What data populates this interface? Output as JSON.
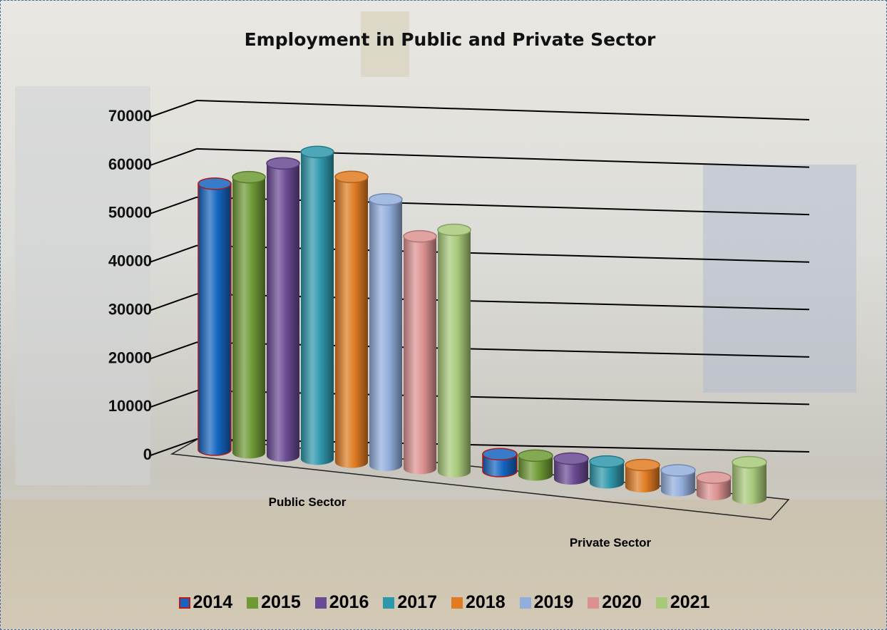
{
  "chart_data": {
    "type": "bar",
    "title": "Employment in Public and Private Sector",
    "categories": [
      "Public Sector",
      "Private Sector"
    ],
    "series": [
      {
        "name": "2014",
        "values": [
          55000,
          3500
        ],
        "color": "#1464c0"
      },
      {
        "name": "2015",
        "values": [
          57000,
          4000
        ],
        "color": "#6e9a35"
      },
      {
        "name": "2016",
        "values": [
          60500,
          4200
        ],
        "color": "#6a4a93"
      },
      {
        "name": "2017",
        "values": [
          63500,
          4400
        ],
        "color": "#2f97ab"
      },
      {
        "name": "2018",
        "values": [
          59000,
          4500
        ],
        "color": "#e07b22"
      },
      {
        "name": "2019",
        "values": [
          55000,
          4200
        ],
        "color": "#93aedc"
      },
      {
        "name": "2020",
        "values": [
          48000,
          3500
        ],
        "color": "#dc9191"
      },
      {
        "name": "2021",
        "values": [
          50000,
          7500
        ],
        "color": "#a8c97a"
      }
    ],
    "yticks": [
      "0",
      "10000",
      "20000",
      "30000",
      "40000",
      "50000",
      "60000",
      "70000"
    ],
    "ylim": [
      0,
      70000
    ],
    "grid": true,
    "legend": "bottom",
    "style": "3d-cylinder"
  }
}
